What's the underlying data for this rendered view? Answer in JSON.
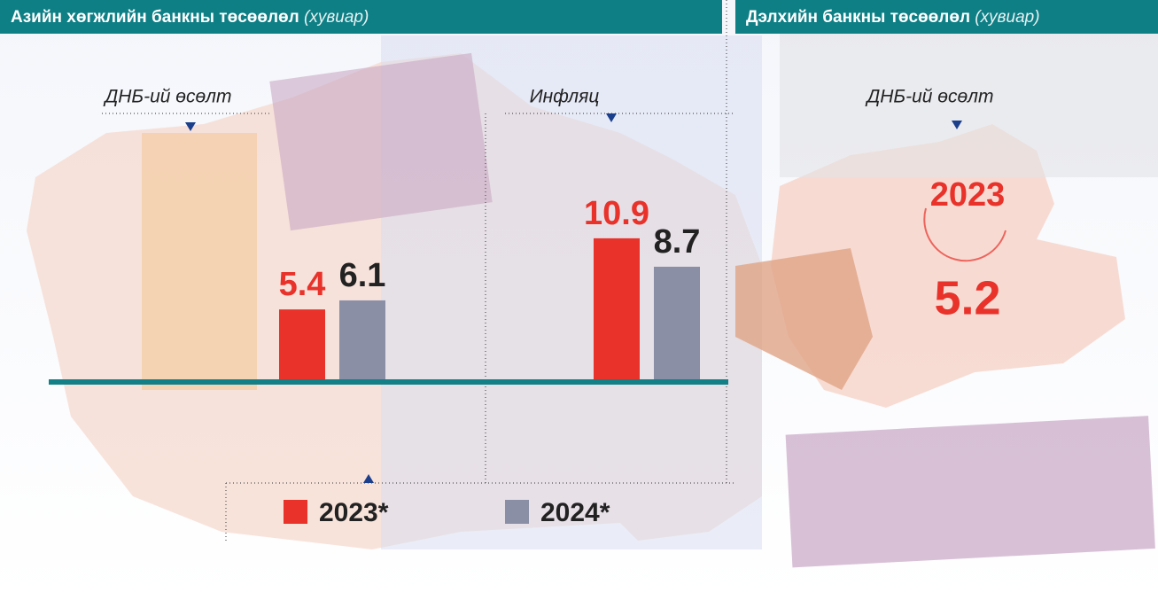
{
  "chart_data": [
    {
      "type": "bar",
      "title": "Азийн хөгжлийн банкны төсөөлөл",
      "subtitle": "(хувиар)",
      "categories": [
        "ДНБ-ий өсөлт",
        "Инфляц"
      ],
      "series": [
        {
          "name": "2023*",
          "color": "#e8322a",
          "values": [
            5.4,
            10.9
          ]
        },
        {
          "name": "2024*",
          "color": "#8a8fa6",
          "values": [
            6.1,
            8.7
          ]
        }
      ]
    },
    {
      "type": "stat",
      "title": "Дэлхийн банкны төсөөлөл",
      "subtitle": "(хувиар)",
      "categories": [
        "ДНБ-ий өсөлт"
      ],
      "series": [
        {
          "name": "2023",
          "color": "#e8322a",
          "values": [
            5.2
          ]
        }
      ]
    }
  ]
}
